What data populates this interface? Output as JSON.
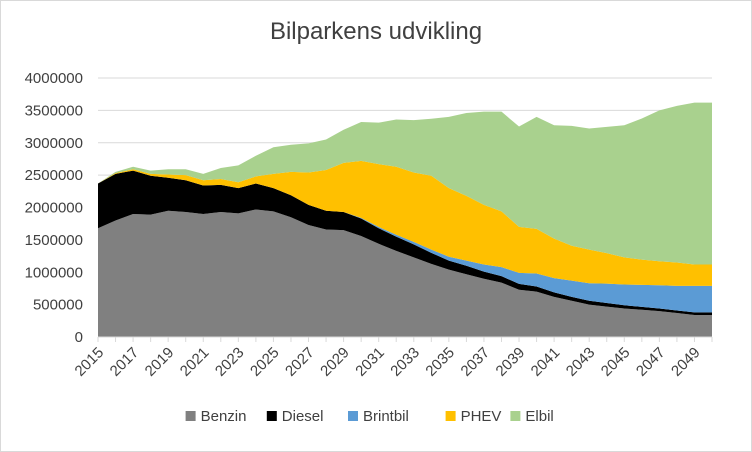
{
  "chart_data": {
    "type": "area",
    "stacked": true,
    "title": "Bilparkens udvikling",
    "xlabel": "",
    "ylabel": "",
    "x": [
      2015,
      2016,
      2017,
      2018,
      2019,
      2020,
      2021,
      2022,
      2023,
      2024,
      2025,
      2026,
      2027,
      2028,
      2029,
      2030,
      2031,
      2032,
      2033,
      2034,
      2035,
      2036,
      2037,
      2038,
      2039,
      2040,
      2041,
      2042,
      2043,
      2044,
      2045,
      2046,
      2047,
      2048,
      2049,
      2050
    ],
    "x_tick_labels": [
      "2015",
      "2017",
      "2019",
      "2021",
      "2023",
      "2025",
      "2027",
      "2029",
      "2031",
      "2033",
      "2035",
      "2037",
      "2039",
      "2041",
      "2043",
      "2045",
      "2047",
      "2049"
    ],
    "ylim": [
      0,
      4000000
    ],
    "y_ticks": [
      0,
      500000,
      1000000,
      1500000,
      2000000,
      2500000,
      3000000,
      3500000,
      4000000
    ],
    "y_tick_labels": [
      "0",
      "500000",
      "1000000",
      "1500000",
      "2000000",
      "2500000",
      "3000000",
      "3500000",
      "4000000"
    ],
    "grid": true,
    "legend_position": "bottom",
    "series": [
      {
        "name": "Benzin",
        "color": "#808080",
        "values": [
          1680000,
          1800000,
          1900000,
          1890000,
          1950000,
          1930000,
          1900000,
          1930000,
          1910000,
          1970000,
          1940000,
          1850000,
          1730000,
          1660000,
          1650000,
          1560000,
          1440000,
          1330000,
          1230000,
          1130000,
          1040000,
          970000,
          900000,
          840000,
          730000,
          700000,
          620000,
          560000,
          500000,
          470000,
          440000,
          420000,
          400000,
          370000,
          340000,
          340000
        ]
      },
      {
        "name": "Diesel",
        "color": "#000000",
        "values": [
          690000,
          720000,
          670000,
          600000,
          510000,
          490000,
          440000,
          420000,
          390000,
          400000,
          360000,
          340000,
          310000,
          290000,
          280000,
          270000,
          240000,
          220000,
          200000,
          170000,
          140000,
          130000,
          110000,
          100000,
          90000,
          80000,
          70000,
          60000,
          60000,
          55000,
          50000,
          45000,
          40000,
          40000,
          40000,
          40000
        ]
      },
      {
        "name": "Brintbil",
        "color": "#5b9bd5",
        "values": [
          0,
          0,
          0,
          0,
          0,
          0,
          0,
          0,
          0,
          0,
          0,
          0,
          0,
          0,
          0,
          10000,
          20000,
          30000,
          40000,
          50000,
          60000,
          80000,
          110000,
          140000,
          170000,
          200000,
          220000,
          250000,
          270000,
          300000,
          320000,
          340000,
          360000,
          380000,
          410000,
          410000
        ]
      },
      {
        "name": "PHEV",
        "color": "#ffc000",
        "values": [
          0,
          10000,
          20000,
          30000,
          50000,
          80000,
          80000,
          90000,
          90000,
          110000,
          220000,
          360000,
          500000,
          630000,
          760000,
          880000,
          970000,
          1050000,
          1070000,
          1140000,
          1060000,
          1000000,
          920000,
          860000,
          710000,
          690000,
          610000,
          540000,
          520000,
          470000,
          420000,
          390000,
          370000,
          360000,
          330000,
          330000
        ]
      },
      {
        "name": "Elbil",
        "color": "#a9d18e",
        "values": [
          0,
          20000,
          40000,
          50000,
          80000,
          90000,
          100000,
          170000,
          260000,
          320000,
          410000,
          420000,
          450000,
          470000,
          510000,
          600000,
          640000,
          730000,
          810000,
          880000,
          1100000,
          1280000,
          1440000,
          1540000,
          1550000,
          1730000,
          1750000,
          1850000,
          1870000,
          1950000,
          2040000,
          2180000,
          2330000,
          2420000,
          2500000,
          2500000
        ]
      }
    ]
  }
}
